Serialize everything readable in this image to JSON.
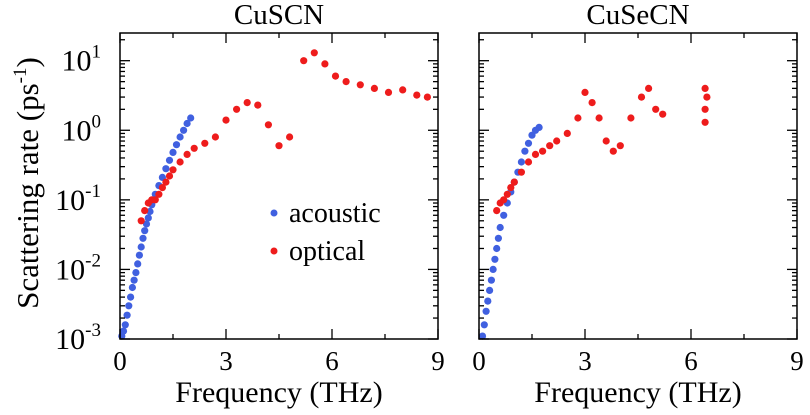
{
  "figure": {
    "ylabel": "Scattering rate (ps",
    "ylabel_sup": "-1",
    "ylabel_close": ")"
  },
  "legend": {
    "items": [
      {
        "label": "acoustic",
        "color": "#4060e0"
      },
      {
        "label": "optical",
        "color": "#ee1c1c"
      }
    ]
  },
  "chart_data": [
    {
      "type": "scatter",
      "title": "CuSCN",
      "xlabel": "Frequency (THz)",
      "ylabel": "Scattering rate (ps^-1)",
      "xlim": [
        0,
        9
      ],
      "ylim": [
        0.001,
        25
      ],
      "yscale": "log",
      "xticks": [
        "0",
        "3",
        "6",
        "9"
      ],
      "yticks": [
        {
          "base": "10",
          "exp": "-3",
          "value": 0.001
        },
        {
          "base": "10",
          "exp": "-2",
          "value": 0.01
        },
        {
          "base": "10",
          "exp": "-1",
          "value": 0.1
        },
        {
          "base": "10",
          "exp": "0",
          "value": 1
        },
        {
          "base": "10",
          "exp": "1",
          "value": 10
        }
      ],
      "series": [
        {
          "name": "acoustic",
          "color": "#4060e0",
          "points": [
            [
              0.05,
              0.0011
            ],
            [
              0.1,
              0.0013
            ],
            [
              0.15,
              0.0016
            ],
            [
              0.2,
              0.0022
            ],
            [
              0.25,
              0.003
            ],
            [
              0.3,
              0.004
            ],
            [
              0.35,
              0.0055
            ],
            [
              0.4,
              0.007
            ],
            [
              0.45,
              0.009
            ],
            [
              0.5,
              0.012
            ],
            [
              0.55,
              0.016
            ],
            [
              0.6,
              0.021
            ],
            [
              0.65,
              0.028
            ],
            [
              0.7,
              0.036
            ],
            [
              0.75,
              0.045
            ],
            [
              0.8,
              0.055
            ],
            [
              0.85,
              0.068
            ],
            [
              0.9,
              0.085
            ],
            [
              0.95,
              0.1
            ],
            [
              1.0,
              0.12
            ],
            [
              1.1,
              0.16
            ],
            [
              1.2,
              0.21
            ],
            [
              1.3,
              0.28
            ],
            [
              1.4,
              0.37
            ],
            [
              1.5,
              0.48
            ],
            [
              1.6,
              0.62
            ],
            [
              1.7,
              0.8
            ],
            [
              1.8,
              1.0
            ],
            [
              1.9,
              1.25
            ],
            [
              2.0,
              1.5
            ]
          ]
        },
        {
          "name": "optical",
          "color": "#ee1c1c",
          "points": [
            [
              0.6,
              0.05
            ],
            [
              0.7,
              0.07
            ],
            [
              0.8,
              0.09
            ],
            [
              0.9,
              0.1
            ],
            [
              1.0,
              0.1
            ],
            [
              1.1,
              0.12
            ],
            [
              1.2,
              0.15
            ],
            [
              1.3,
              0.18
            ],
            [
              1.4,
              0.22
            ],
            [
              1.5,
              0.27
            ],
            [
              1.7,
              0.35
            ],
            [
              1.9,
              0.45
            ],
            [
              2.1,
              0.55
            ],
            [
              2.4,
              0.65
            ],
            [
              2.7,
              0.8
            ],
            [
              3.0,
              1.4
            ],
            [
              3.3,
              2.0
            ],
            [
              3.6,
              2.5
            ],
            [
              3.9,
              2.3
            ],
            [
              4.2,
              1.2
            ],
            [
              4.5,
              0.6
            ],
            [
              4.8,
              0.8
            ],
            [
              5.2,
              10
            ],
            [
              5.5,
              13
            ],
            [
              5.8,
              9
            ],
            [
              6.1,
              6
            ],
            [
              6.4,
              5
            ],
            [
              6.8,
              4.5
            ],
            [
              7.2,
              4
            ],
            [
              7.6,
              3.5
            ],
            [
              8.0,
              3.8
            ],
            [
              8.4,
              3.2
            ],
            [
              8.7,
              3.0
            ]
          ]
        }
      ]
    },
    {
      "type": "scatter",
      "title": "CuSeCN",
      "xlabel": "Frequency (THz)",
      "ylabel": "",
      "xlim": [
        0,
        9
      ],
      "ylim": [
        0.001,
        25
      ],
      "yscale": "log",
      "xticks": [
        "0",
        "3",
        "6",
        "9"
      ],
      "series": [
        {
          "name": "acoustic",
          "color": "#4060e0",
          "points": [
            [
              0.1,
              0.0011
            ],
            [
              0.15,
              0.0016
            ],
            [
              0.2,
              0.0025
            ],
            [
              0.25,
              0.0035
            ],
            [
              0.3,
              0.005
            ],
            [
              0.35,
              0.007
            ],
            [
              0.4,
              0.01
            ],
            [
              0.45,
              0.014
            ],
            [
              0.5,
              0.02
            ],
            [
              0.55,
              0.028
            ],
            [
              0.6,
              0.04
            ],
            [
              0.7,
              0.06
            ],
            [
              0.8,
              0.09
            ],
            [
              0.9,
              0.13
            ],
            [
              1.0,
              0.18
            ],
            [
              1.1,
              0.25
            ],
            [
              1.2,
              0.35
            ],
            [
              1.3,
              0.5
            ],
            [
              1.4,
              0.65
            ],
            [
              1.5,
              0.85
            ],
            [
              1.6,
              1.0
            ],
            [
              1.7,
              1.1
            ]
          ]
        },
        {
          "name": "optical",
          "color": "#ee1c1c",
          "points": [
            [
              0.5,
              0.07
            ],
            [
              0.6,
              0.09
            ],
            [
              0.7,
              0.1
            ],
            [
              0.8,
              0.12
            ],
            [
              0.9,
              0.15
            ],
            [
              1.0,
              0.18
            ],
            [
              1.2,
              0.25
            ],
            [
              1.4,
              0.35
            ],
            [
              1.6,
              0.45
            ],
            [
              1.8,
              0.5
            ],
            [
              2.0,
              0.6
            ],
            [
              2.2,
              0.7
            ],
            [
              2.5,
              0.9
            ],
            [
              2.8,
              1.5
            ],
            [
              3.0,
              3.5
            ],
            [
              3.2,
              2.5
            ],
            [
              3.4,
              1.5
            ],
            [
              3.6,
              0.7
            ],
            [
              3.8,
              0.5
            ],
            [
              4.0,
              0.6
            ],
            [
              4.3,
              1.5
            ],
            [
              4.6,
              3.0
            ],
            [
              4.8,
              4.0
            ],
            [
              5.0,
              2.0
            ],
            [
              5.2,
              1.7
            ],
            [
              6.4,
              1.3
            ],
            [
              6.4,
              2.0
            ],
            [
              6.45,
              3.0
            ],
            [
              6.4,
              4.0
            ]
          ]
        }
      ]
    }
  ]
}
